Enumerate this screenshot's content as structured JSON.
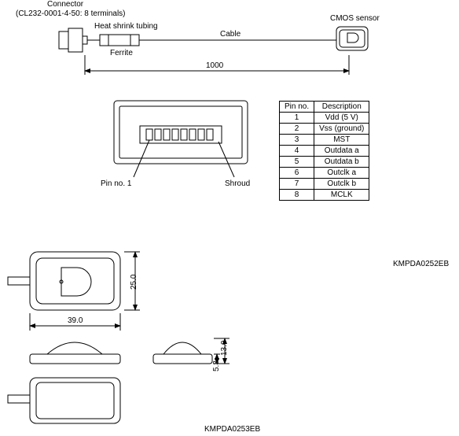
{
  "labels": {
    "connector_title": "Connector",
    "connector_sub": "(CL232-0001-4-50: 8 terminals)",
    "heat_shrink": "Heat shrink tubing",
    "ferrite": "Ferrite",
    "cable": "Cable",
    "cmos": "CMOS sensor",
    "dim_1000": "1000",
    "pin1": "Pin no. 1",
    "shroud": "Shroud",
    "dim_39": "39.0",
    "dim_25": "25.0",
    "dim_13": "13.0",
    "dim_53": "5.3",
    "code1": "KMPDA0252EB",
    "code2": "KMPDA0253EB"
  },
  "pin_table": {
    "headers": [
      "Pin no.",
      "Description"
    ],
    "rows": [
      [
        "1",
        "Vdd (5 V)"
      ],
      [
        "2",
        "Vss (ground)"
      ],
      [
        "3",
        "MST"
      ],
      [
        "4",
        "Outdata a"
      ],
      [
        "5",
        "Outdata b"
      ],
      [
        "6",
        "Outclk a"
      ],
      [
        "7",
        "Outclk b"
      ],
      [
        "8",
        "MCLK"
      ]
    ]
  },
  "style": {
    "stroke": "#000000",
    "stroke_width": 1,
    "fill_none": "none",
    "fill_white": "#ffffff",
    "fill_hatch": "#ffffff",
    "font_size_label": 10
  }
}
